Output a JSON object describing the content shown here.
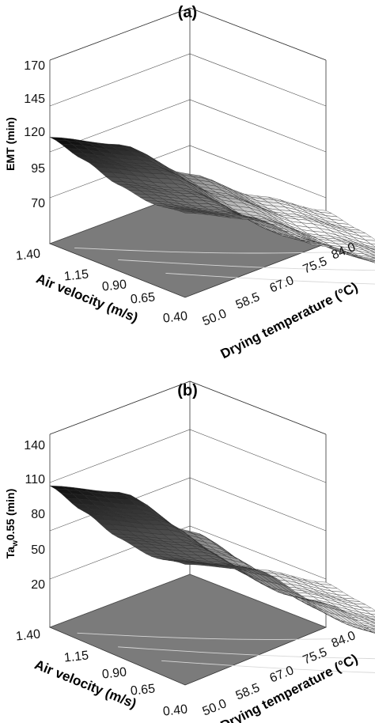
{
  "chart_data": [
    {
      "type": "surface3d",
      "panel_label": "(a)",
      "zlabel": "EMT (min)",
      "xlabel": "Drying temperature (°C)",
      "ylabel": "Air velocity (m/s)",
      "x_ticks": [
        "50.0",
        "58.5",
        "67.0",
        "75.5",
        "84.0"
      ],
      "y_ticks": [
        "0.40",
        "0.65",
        "0.90",
        "1.15",
        "1.40"
      ],
      "z_ticks": [
        "70",
        "95",
        "120",
        "145",
        "170"
      ],
      "x_range": [
        50,
        84
      ],
      "y_range": [
        0.4,
        1.4
      ],
      "z_range": [
        70,
        170
      ],
      "surface": {
        "temp_profile": [
          {
            "x": 50.0,
            "z": 128
          },
          {
            "x": 58.5,
            "z": 124
          },
          {
            "x": 67.0,
            "z": 108
          },
          {
            "x": 75.5,
            "z": 96
          },
          {
            "x": 84.0,
            "z": 88
          }
        ],
        "velocity_profile": [
          {
            "y": 1.4,
            "z": 128
          },
          {
            "y": 1.15,
            "z": 123
          },
          {
            "y": 0.9,
            "z": 117
          },
          {
            "y": 0.65,
            "z": 114
          },
          {
            "y": 0.4,
            "z": 116
          }
        ]
      }
    },
    {
      "type": "surface3d",
      "panel_label": "(b)",
      "zlabel": "Ta",
      "zlabel_sub": "w",
      "zlabel_rest": "0.55 (min)",
      "xlabel": "Drying temperature (°C)",
      "ylabel": "Air velocity (m/s)",
      "x_ticks": [
        "50.0",
        "58.5",
        "67.0",
        "75.5",
        "84.0"
      ],
      "y_ticks": [
        "0.40",
        "0.65",
        "0.90",
        "1.15",
        "1.40"
      ],
      "z_ticks": [
        "20",
        "50",
        "80",
        "110",
        "140"
      ],
      "x_range": [
        50,
        84
      ],
      "y_range": [
        0.4,
        1.4
      ],
      "z_range": [
        20,
        140
      ],
      "surface": {
        "temp_profile": [
          {
            "x": 50.0,
            "z": 108
          },
          {
            "x": 58.5,
            "z": 104
          },
          {
            "x": 67.0,
            "z": 80
          },
          {
            "x": 75.5,
            "z": 56
          },
          {
            "x": 84.0,
            "z": 48
          }
        ],
        "velocity_profile": [
          {
            "y": 1.4,
            "z": 108
          },
          {
            "y": 1.15,
            "z": 101
          },
          {
            "y": 0.9,
            "z": 94
          },
          {
            "y": 0.65,
            "z": 91
          },
          {
            "y": 0.4,
            "z": 95
          }
        ]
      }
    }
  ]
}
